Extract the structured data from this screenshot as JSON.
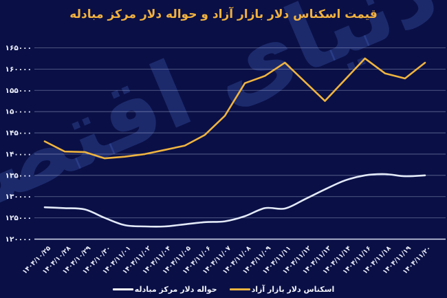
{
  "header": {
    "title": "قیمت اسکناس دلار بازار آزاد و حواله دلار مرکز مبادله"
  },
  "watermark": {
    "text": "دنیای اقتصاد"
  },
  "colors": {
    "background": "#0a1046",
    "title": "#f3b23e",
    "free_market_line": "#f0b43f",
    "exchange_center_line": "#e3eaf8",
    "gridline": "rgba(188,198,228,0.50)",
    "axis_line": "rgba(228,234,250,0.95)",
    "tick_label": "#eef1fb",
    "watermark": "rgba(72,102,198,0.30)"
  },
  "legend": {
    "items": [
      {
        "label": "اسکناس دلار بازار آزاد",
        "color": "#f0b43f"
      },
      {
        "label": "حواله دلار مرکز مبادله",
        "color": "#ffffff"
      }
    ]
  },
  "chart_data": {
    "type": "line",
    "title": "قیمت اسکناس دلار بازار آزاد و حواله دلار مرکز مبادله",
    "grid": true,
    "legend_position": "bottom",
    "ylim": [
      120000,
      165000
    ],
    "yticks": [
      165000,
      160000,
      155000,
      150000,
      145000,
      140000,
      135000,
      130000,
      125000,
      120000
    ],
    "ytick_labels": [
      "۱۶۵۰۰۰",
      "۱۶۰۰۰۰",
      "۱۵۵۰۰۰",
      "۱۵۰۰۰۰",
      "۱۴۵۰۰۰",
      "۱۴۰۰۰۰",
      "۱۳۵۰۰۰",
      "۱۳۰۰۰۰",
      "۱۲۵۰۰۰",
      "۱۲۰۰۰۰"
    ],
    "x": [
      "۱۴۰۴/۱۰/۲۵",
      "۱۴۰۴/۱۰/۲۸",
      "۱۴۰۴/۱۰/۲۹",
      "۱۴۰۴/۱۰/۳۰",
      "۱۴۰۴/۱۱/۰۱",
      "۱۴۰۴/۱۱/۰۲",
      "۱۴۰۴/۱۱/۰۴",
      "۱۴۰۴/۱۱/۰۵",
      "۱۴۰۴/۱۱/۰۶",
      "۱۴۰۴/۱۱/۰۷",
      "۱۴۰۴/۱۱/۰۸",
      "۱۴۰۴/۱۱/۰۹",
      "۱۴۰۴/۱۱/۱۱",
      "۱۴۰۴/۱۱/۱۲",
      "۱۴۰۴/۱۱/۱۳",
      "۱۴۰۴/۱۱/۱۴",
      "۱۴۰۴/۱۱/۱۶",
      "۱۴۰۴/۱۱/۱۸",
      "۱۴۰۴/۱۱/۱۹",
      "۱۴۰۴/۱۱/۲۰"
    ],
    "series": [
      {
        "name": "اسکناس دلار بازار آزاد",
        "color": "#f0b43f",
        "smooth": false,
        "values": [
          143000,
          140600,
          140500,
          139000,
          139400,
          140000,
          141000,
          142000,
          144500,
          149000,
          156700,
          158400,
          161500,
          157000,
          152500,
          157500,
          162500,
          159000,
          157800,
          161500
        ]
      },
      {
        "name": "حواله دلار مرکز مبادله",
        "color": "#e3eaf8",
        "smooth": true,
        "values": [
          127500,
          127300,
          127000,
          125000,
          123300,
          123000,
          123000,
          123500,
          124000,
          124200,
          125400,
          127300,
          127200,
          129400,
          131700,
          133800,
          135000,
          135300,
          134800,
          135000
        ]
      }
    ]
  }
}
